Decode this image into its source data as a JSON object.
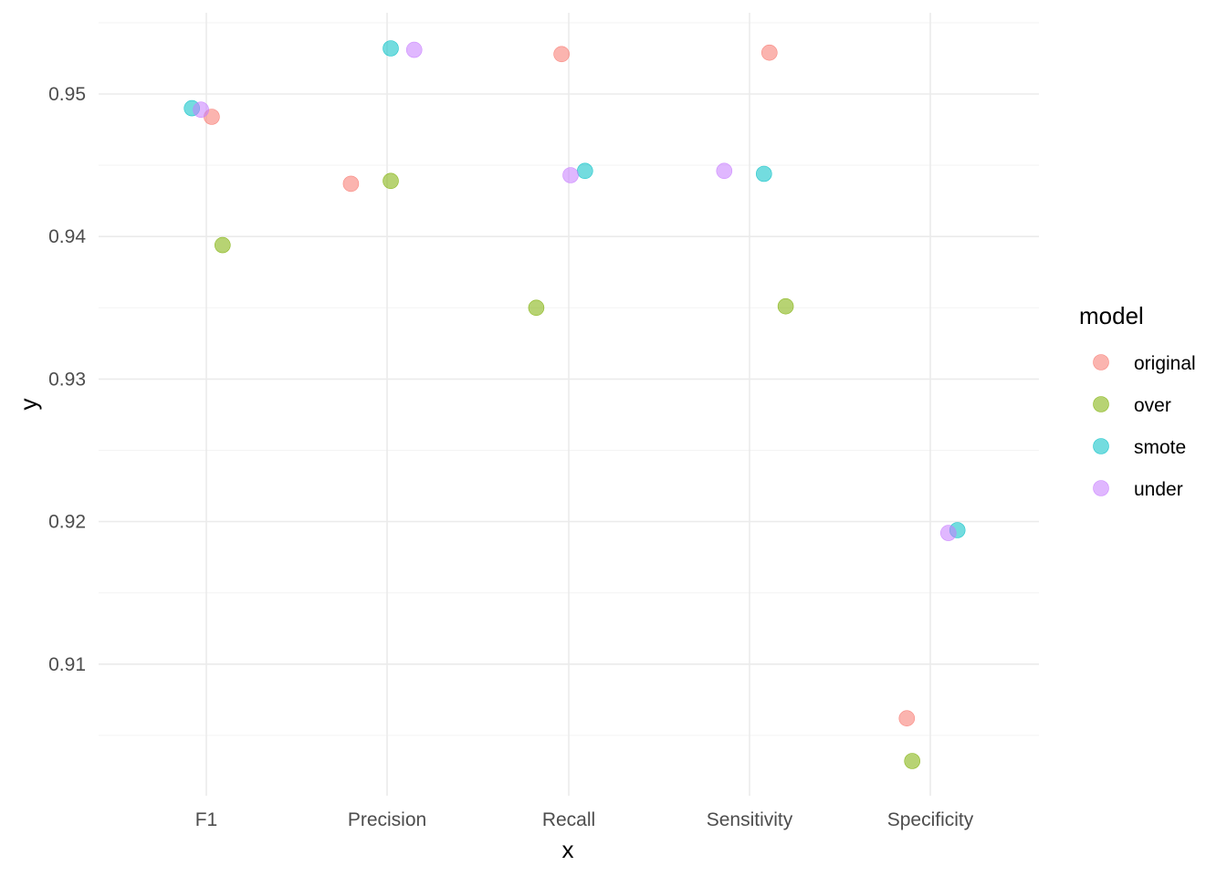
{
  "chart_data": {
    "type": "scatter",
    "xlabel": "x",
    "ylabel": "y",
    "categories": [
      "F1",
      "Precision",
      "Recall",
      "Sensitivity",
      "Specificity"
    ],
    "yticks": [
      0.91,
      0.92,
      0.93,
      0.94,
      0.95
    ],
    "ylim": [
      0.9004,
      0.9555
    ],
    "grid": true,
    "legend": {
      "title": "model",
      "placement": "right",
      "entries": [
        "original",
        "over",
        "smote",
        "under"
      ]
    },
    "colors": {
      "original": "#F8766D",
      "over": "#7CAE00",
      "smote": "#00BFC4",
      "under": "#C77CFF"
    },
    "series": [
      {
        "name": "original",
        "points": [
          {
            "x": "F1",
            "offset": 0.03,
            "y": 0.9484
          },
          {
            "x": "Precision",
            "offset": -0.2,
            "y": 0.9437
          },
          {
            "x": "Recall",
            "offset": -0.04,
            "y": 0.9528
          },
          {
            "x": "Sensitivity",
            "offset": 0.11,
            "y": 0.9529
          },
          {
            "x": "Specificity",
            "offset": -0.13,
            "y": 0.9062
          }
        ]
      },
      {
        "name": "over",
        "points": [
          {
            "x": "F1",
            "offset": 0.09,
            "y": 0.9394
          },
          {
            "x": "Precision",
            "offset": 0.02,
            "y": 0.9439
          },
          {
            "x": "Recall",
            "offset": -0.18,
            "y": 0.935
          },
          {
            "x": "Sensitivity",
            "offset": 0.2,
            "y": 0.9351
          },
          {
            "x": "Specificity",
            "offset": -0.1,
            "y": 0.9032
          }
        ]
      },
      {
        "name": "smote",
        "points": [
          {
            "x": "F1",
            "offset": -0.08,
            "y": 0.949
          },
          {
            "x": "Precision",
            "offset": 0.02,
            "y": 0.9532
          },
          {
            "x": "Recall",
            "offset": 0.09,
            "y": 0.9446
          },
          {
            "x": "Sensitivity",
            "offset": 0.08,
            "y": 0.9444
          },
          {
            "x": "Specificity",
            "offset": 0.15,
            "y": 0.9194
          }
        ]
      },
      {
        "name": "under",
        "points": [
          {
            "x": "F1",
            "offset": -0.03,
            "y": 0.9489
          },
          {
            "x": "Precision",
            "offset": 0.15,
            "y": 0.9531
          },
          {
            "x": "Recall",
            "offset": 0.01,
            "y": 0.9443
          },
          {
            "x": "Sensitivity",
            "offset": -0.14,
            "y": 0.9446
          },
          {
            "x": "Specificity",
            "offset": 0.1,
            "y": 0.9192
          }
        ]
      }
    ]
  }
}
